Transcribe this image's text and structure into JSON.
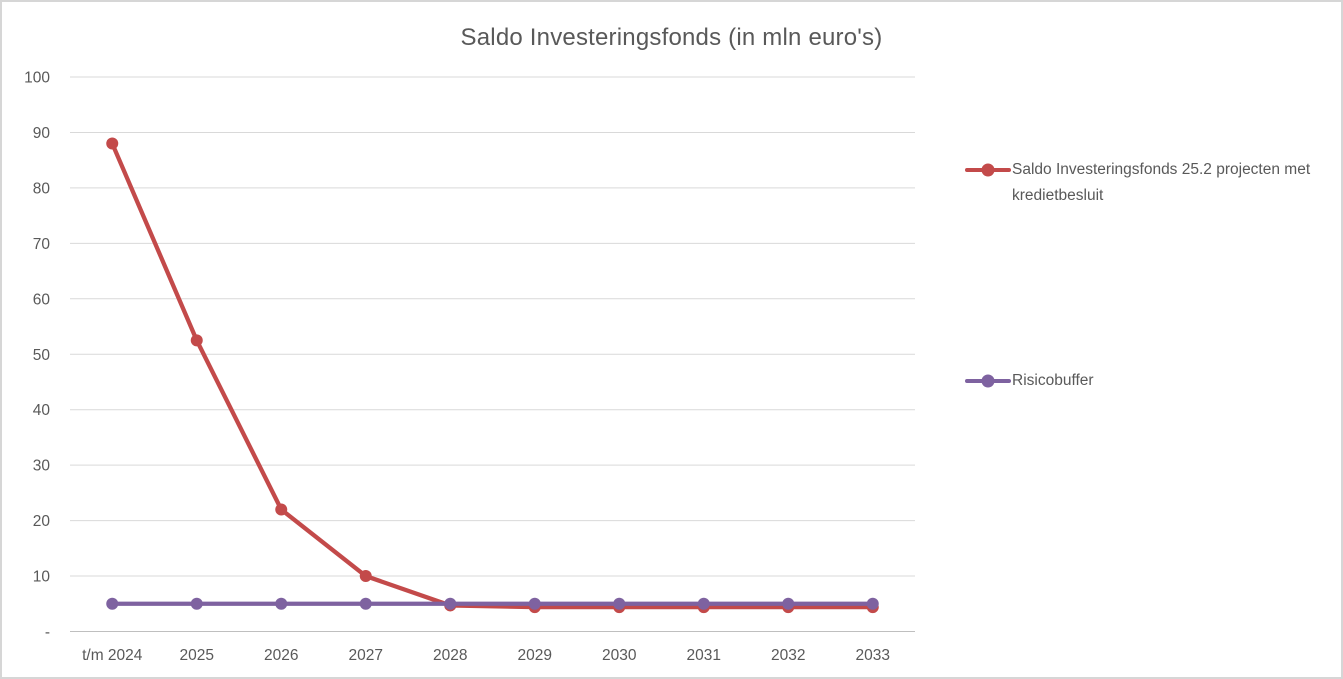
{
  "chart_data": {
    "type": "line",
    "title": "Saldo Investeringsfonds (in mln euro's)",
    "categories": [
      "t/m 2024",
      "2025",
      "2026",
      "2027",
      "2028",
      "2029",
      "2030",
      "2031",
      "2032",
      "2033"
    ],
    "series": [
      {
        "name": "Saldo Investeringsfonds 25.2 projecten met kredietbesluit",
        "color": "#C34A4A",
        "values": [
          88,
          52.5,
          22,
          10,
          4.7,
          4.4,
          4.4,
          4.4,
          4.4,
          4.4
        ]
      },
      {
        "name": "Risicobuffer",
        "color": "#7E62A0",
        "values": [
          5,
          5,
          5,
          5,
          5,
          5,
          5,
          5,
          5,
          5
        ]
      }
    ],
    "xlabel": "",
    "ylabel": "",
    "ylim": [
      0,
      100
    ],
    "y_tick_step": 10,
    "y_tick_labels": [
      "-",
      "10",
      "20",
      "30",
      "40",
      "50",
      "60",
      "70",
      "80",
      "90",
      "100"
    ],
    "grid": "horizontal",
    "legend_position": "right",
    "colors": {
      "gridline": "#D9D9D9",
      "axis_line": "#BFBFBF",
      "text": "#595959",
      "background": "#FFFFFF"
    }
  },
  "legend": {
    "items": [
      {
        "label": "Saldo Investeringsfonds 25.2 projecten met kredietbesluit",
        "color": "#C34A4A"
      },
      {
        "label": "Risicobuffer",
        "color": "#7E62A0"
      }
    ]
  }
}
